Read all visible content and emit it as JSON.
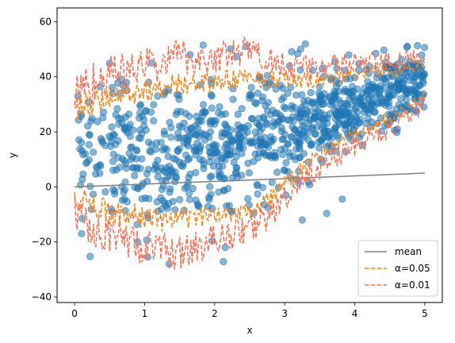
{
  "chart_data": {
    "type": "scatter",
    "title": "",
    "xlabel": "x",
    "ylabel": "y",
    "xlim": [
      -0.25,
      5.25
    ],
    "ylim": [
      -42,
      65
    ],
    "xticks": [
      0,
      1,
      2,
      3,
      4,
      5
    ],
    "yticks": [
      -40,
      -20,
      0,
      20,
      40,
      60
    ],
    "grid": false,
    "legend_position": "bottom-right",
    "scatter": {
      "color": "#1f77b4",
      "count": 1000,
      "x_range": [
        0,
        5
      ],
      "mean_trend": {
        "start": 12,
        "end": 40
      },
      "spread": {
        "start": 16,
        "end": 6
      },
      "extremes": [
        {
          "x": 1.35,
          "y": -28
        },
        {
          "x": 2.15,
          "y": -22
        },
        {
          "x": 0.9,
          "y": -20
        },
        {
          "x": 0.1,
          "y": -17
        },
        {
          "x": 3.25,
          "y": -12
        },
        {
          "x": 1.65,
          "y": 48
        },
        {
          "x": 1.1,
          "y": 45
        },
        {
          "x": 2.45,
          "y": 51
        },
        {
          "x": 4.75,
          "y": 51
        },
        {
          "x": 0.05,
          "y": 33
        }
      ]
    },
    "series": [
      {
        "name": "mean",
        "style": "solid",
        "color": "#808080",
        "x": [
          0,
          5
        ],
        "y": [
          0,
          5
        ]
      },
      {
        "name": "α=0.05",
        "style": "dashed",
        "color": "#ff7f0e",
        "upper": [
          [
            0.0,
            28
          ],
          [
            0.25,
            30
          ],
          [
            0.5,
            33
          ],
          [
            0.75,
            34
          ],
          [
            1.0,
            35
          ],
          [
            1.25,
            36
          ],
          [
            1.5,
            38
          ],
          [
            1.75,
            37
          ],
          [
            2.0,
            38
          ],
          [
            2.25,
            39
          ],
          [
            2.5,
            40
          ],
          [
            2.75,
            39
          ],
          [
            3.0,
            39
          ],
          [
            3.25,
            38
          ],
          [
            3.5,
            39
          ],
          [
            3.75,
            40
          ],
          [
            4.0,
            41
          ],
          [
            4.25,
            42
          ],
          [
            4.5,
            42
          ],
          [
            4.75,
            43
          ],
          [
            5.0,
            45
          ]
        ],
        "lower": [
          [
            0.0,
            -3
          ],
          [
            0.25,
            -7
          ],
          [
            0.5,
            -9
          ],
          [
            0.75,
            -10
          ],
          [
            1.0,
            -11
          ],
          [
            1.25,
            -12
          ],
          [
            1.5,
            -12
          ],
          [
            1.75,
            -11
          ],
          [
            2.0,
            -10
          ],
          [
            2.25,
            -9
          ],
          [
            2.5,
            -8
          ],
          [
            2.75,
            -5
          ],
          [
            3.0,
            1
          ],
          [
            3.25,
            6
          ],
          [
            3.5,
            12
          ],
          [
            3.75,
            16
          ],
          [
            4.0,
            19
          ],
          [
            4.25,
            22
          ],
          [
            4.5,
            25
          ],
          [
            4.75,
            28
          ],
          [
            5.0,
            34
          ]
        ]
      },
      {
        "name": "α=0.01",
        "style": "dashed",
        "color": "#fa6f53",
        "upper": [
          [
            0.0,
            34
          ],
          [
            0.25,
            38
          ],
          [
            0.5,
            41
          ],
          [
            0.75,
            42
          ],
          [
            1.0,
            44
          ],
          [
            1.25,
            45
          ],
          [
            1.5,
            48
          ],
          [
            1.75,
            46
          ],
          [
            2.0,
            47
          ],
          [
            2.25,
            48
          ],
          [
            2.5,
            50
          ],
          [
            2.75,
            46
          ],
          [
            3.0,
            45
          ],
          [
            3.25,
            43
          ],
          [
            3.5,
            44
          ],
          [
            3.75,
            44
          ],
          [
            4.0,
            45
          ],
          [
            4.25,
            45
          ],
          [
            4.5,
            45
          ],
          [
            4.75,
            46
          ],
          [
            5.0,
            47
          ]
        ],
        "lower": [
          [
            0.0,
            -9
          ],
          [
            0.25,
            -14
          ],
          [
            0.5,
            -17
          ],
          [
            0.75,
            -19
          ],
          [
            1.0,
            -22
          ],
          [
            1.25,
            -23
          ],
          [
            1.5,
            -24
          ],
          [
            1.75,
            -22
          ],
          [
            2.0,
            -19
          ],
          [
            2.25,
            -17
          ],
          [
            2.5,
            -15
          ],
          [
            2.75,
            -11
          ],
          [
            3.0,
            -5
          ],
          [
            3.25,
            1
          ],
          [
            3.5,
            7
          ],
          [
            3.75,
            11
          ],
          [
            4.0,
            15
          ],
          [
            4.25,
            18
          ],
          [
            4.5,
            21
          ],
          [
            4.75,
            24
          ],
          [
            5.0,
            31
          ]
        ]
      }
    ]
  }
}
